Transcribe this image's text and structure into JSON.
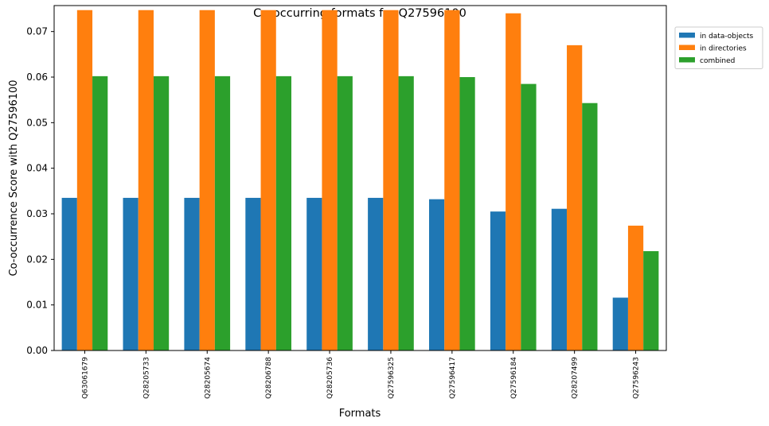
{
  "chart_data": {
    "type": "bar",
    "title": "Co-occurring formats for Q27596100",
    "xlabel": "Formats",
    "ylabel": "Co-occurrence Score with Q27596100",
    "ylim": [
      0,
      0.0757
    ],
    "yticks": [
      "0.00",
      "0.01",
      "0.02",
      "0.03",
      "0.04",
      "0.05",
      "0.06",
      "0.07"
    ],
    "categories": [
      "Q63061679",
      "Q28205733",
      "Q28205674",
      "Q28206788",
      "Q28205736",
      "Q27596325",
      "Q27596417",
      "Q27596184",
      "Q28207499",
      "Q27596243"
    ],
    "series": [
      {
        "name": "in data-objects",
        "color": "#1f77b4",
        "values": [
          0.0335,
          0.0335,
          0.0335,
          0.0335,
          0.0335,
          0.0335,
          0.0332,
          0.0305,
          0.0311,
          0.0116
        ]
      },
      {
        "name": "in directories",
        "color": "#ff7f0e",
        "values": [
          0.0747,
          0.0747,
          0.0747,
          0.0747,
          0.0747,
          0.0747,
          0.0747,
          0.074,
          0.067,
          0.0274
        ]
      },
      {
        "name": "combined",
        "color": "#2ca02c",
        "values": [
          0.0602,
          0.0602,
          0.0602,
          0.0602,
          0.0602,
          0.0602,
          0.06,
          0.0585,
          0.0543,
          0.0218
        ]
      }
    ],
    "grid": false,
    "legend_position": "outside-top-right"
  }
}
